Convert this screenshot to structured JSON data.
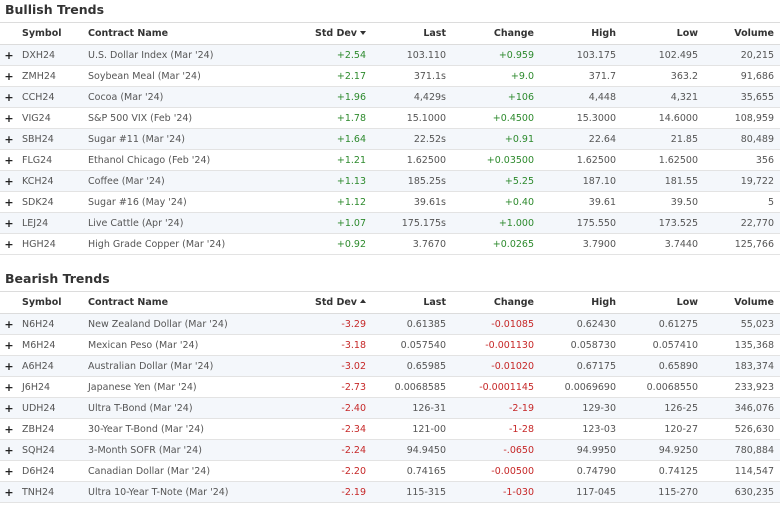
{
  "bullish": {
    "title": "Bullish Trends",
    "headers": {
      "symbol": "Symbol",
      "contract": "Contract Name",
      "stddev": "Std Dev",
      "last": "Last",
      "change": "Change",
      "high": "High",
      "low": "Low",
      "volume": "Volume"
    },
    "sort_direction": "descending",
    "rows": [
      {
        "symbol": "DXH24",
        "contract": "U.S. Dollar Index (Mar '24)",
        "stddev": "+2.54",
        "last": "103.110",
        "change": "+0.959",
        "high": "103.175",
        "low": "102.495",
        "volume": "20,215"
      },
      {
        "symbol": "ZMH24",
        "contract": "Soybean Meal (Mar '24)",
        "stddev": "+2.17",
        "last": "371.1s",
        "change": "+9.0",
        "high": "371.7",
        "low": "363.2",
        "volume": "91,686"
      },
      {
        "symbol": "CCH24",
        "contract": "Cocoa (Mar '24)",
        "stddev": "+1.96",
        "last": "4,429s",
        "change": "+106",
        "high": "4,448",
        "low": "4,321",
        "volume": "35,655"
      },
      {
        "symbol": "VIG24",
        "contract": "S&P 500 VIX (Feb '24)",
        "stddev": "+1.78",
        "last": "15.1000",
        "change": "+0.4500",
        "high": "15.3000",
        "low": "14.6000",
        "volume": "108,959"
      },
      {
        "symbol": "SBH24",
        "contract": "Sugar #11 (Mar '24)",
        "stddev": "+1.64",
        "last": "22.52s",
        "change": "+0.91",
        "high": "22.64",
        "low": "21.85",
        "volume": "80,489"
      },
      {
        "symbol": "FLG24",
        "contract": "Ethanol Chicago (Feb '24)",
        "stddev": "+1.21",
        "last": "1.62500",
        "change": "+0.03500",
        "high": "1.62500",
        "low": "1.62500",
        "volume": "356"
      },
      {
        "symbol": "KCH24",
        "contract": "Coffee (Mar '24)",
        "stddev": "+1.13",
        "last": "185.25s",
        "change": "+5.25",
        "high": "187.10",
        "low": "181.55",
        "volume": "19,722"
      },
      {
        "symbol": "SDK24",
        "contract": "Sugar #16 (May '24)",
        "stddev": "+1.12",
        "last": "39.61s",
        "change": "+0.40",
        "high": "39.61",
        "low": "39.50",
        "volume": "5"
      },
      {
        "symbol": "LEJ24",
        "contract": "Live Cattle (Apr '24)",
        "stddev": "+1.07",
        "last": "175.175s",
        "change": "+1.000",
        "high": "175.550",
        "low": "173.525",
        "volume": "22,770"
      },
      {
        "symbol": "HGH24",
        "contract": "High Grade Copper (Mar '24)",
        "stddev": "+0.92",
        "last": "3.7670",
        "change": "+0.0265",
        "high": "3.7900",
        "low": "3.7440",
        "volume": "125,766"
      }
    ]
  },
  "bearish": {
    "title": "Bearish Trends",
    "headers": {
      "symbol": "Symbol",
      "contract": "Contract Name",
      "stddev": "Std Dev",
      "last": "Last",
      "change": "Change",
      "high": "High",
      "low": "Low",
      "volume": "Volume"
    },
    "sort_direction": "ascending",
    "rows": [
      {
        "symbol": "N6H24",
        "contract": "New Zealand Dollar (Mar '24)",
        "stddev": "-3.29",
        "last": "0.61385",
        "change": "-0.01085",
        "high": "0.62430",
        "low": "0.61275",
        "volume": "55,023"
      },
      {
        "symbol": "M6H24",
        "contract": "Mexican Peso (Mar '24)",
        "stddev": "-3.18",
        "last": "0.057540",
        "change": "-0.001130",
        "high": "0.058730",
        "low": "0.057410",
        "volume": "135,368"
      },
      {
        "symbol": "A6H24",
        "contract": "Australian Dollar (Mar '24)",
        "stddev": "-3.02",
        "last": "0.65985",
        "change": "-0.01020",
        "high": "0.67175",
        "low": "0.65890",
        "volume": "183,374"
      },
      {
        "symbol": "J6H24",
        "contract": "Japanese Yen (Mar '24)",
        "stddev": "-2.73",
        "last": "0.0068585",
        "change": "-0.0001145",
        "high": "0.0069690",
        "low": "0.0068550",
        "volume": "233,923"
      },
      {
        "symbol": "UDH24",
        "contract": "Ultra T-Bond (Mar '24)",
        "stddev": "-2.40",
        "last": "126-31",
        "change": "-2-19",
        "high": "129-30",
        "low": "126-25",
        "volume": "346,076"
      },
      {
        "symbol": "ZBH24",
        "contract": "30-Year T-Bond (Mar '24)",
        "stddev": "-2.34",
        "last": "121-00",
        "change": "-1-28",
        "high": "123-03",
        "low": "120-27",
        "volume": "526,630"
      },
      {
        "symbol": "SQH24",
        "contract": "3-Month SOFR (Mar '24)",
        "stddev": "-2.24",
        "last": "94.9450",
        "change": "-.0650",
        "high": "94.9950",
        "low": "94.9250",
        "volume": "780,884"
      },
      {
        "symbol": "D6H24",
        "contract": "Canadian Dollar (Mar '24)",
        "stddev": "-2.20",
        "last": "0.74165",
        "change": "-0.00500",
        "high": "0.74790",
        "low": "0.74125",
        "volume": "114,547"
      },
      {
        "symbol": "TNH24",
        "contract": "Ultra 10-Year T-Note (Mar '24)",
        "stddev": "-2.19",
        "last": "115-315",
        "change": "-1-030",
        "high": "117-045",
        "low": "115-270",
        "volume": "630,235"
      }
    ]
  },
  "expand_icon": "plus-icon",
  "colors": {
    "positive": "#2d8a2d",
    "negative": "#c62828",
    "row_alt": "#f4f7fb",
    "border": "#dcdcdc"
  }
}
